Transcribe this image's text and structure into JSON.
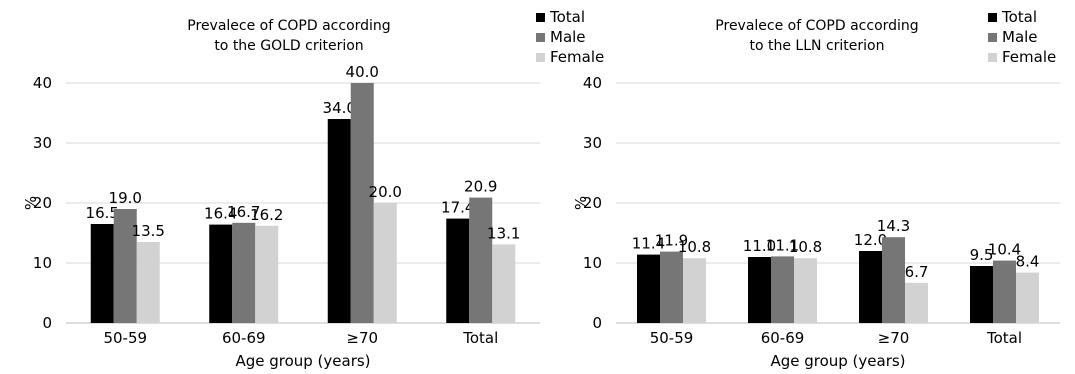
{
  "chart_data": [
    {
      "type": "bar",
      "title_lines": [
        "Prevalece of COPD according",
        "to the GOLD criterion"
      ],
      "xlabel": "Age group (years)",
      "ylabel": "%",
      "ylim": [
        0,
        40
      ],
      "yticks": [
        "0",
        "10",
        "20",
        "30",
        "40"
      ],
      "grid": true,
      "legend_position": "top-right",
      "categories": [
        "50-59",
        "60-69",
        "≥70",
        "Total"
      ],
      "series": [
        {
          "name": "Total",
          "color": "#000000",
          "values": [
            16.5,
            16.4,
            34.0,
            17.4
          ],
          "labels": [
            "16.5",
            "16.4",
            "34.0",
            "17.4"
          ]
        },
        {
          "name": "Male",
          "color": "#767676",
          "values": [
            19.0,
            16.7,
            40.0,
            20.9
          ],
          "labels": [
            "19.0",
            "16.7",
            "40.0",
            "20.9"
          ]
        },
        {
          "name": "Female",
          "color": "#d2d2d2",
          "values": [
            13.5,
            16.2,
            20.0,
            13.1
          ],
          "labels": [
            "13.5",
            "16.2",
            "20.0",
            "13.1"
          ]
        }
      ]
    },
    {
      "type": "bar",
      "title_lines": [
        "Prevalece of COPD according",
        "to the LLN criterion"
      ],
      "xlabel": "Age group (years)",
      "ylabel": "%",
      "ylim": [
        0,
        40
      ],
      "yticks": [
        "0",
        "10",
        "20",
        "30",
        "40"
      ],
      "grid": true,
      "legend_position": "top-right",
      "categories": [
        "50-59",
        "60-69",
        "≥70",
        "Total"
      ],
      "series": [
        {
          "name": "Total",
          "color": "#000000",
          "values": [
            11.4,
            11.0,
            12.0,
            9.5
          ],
          "labels": [
            "11.4",
            "11.0",
            "12.0",
            "9.5"
          ]
        },
        {
          "name": "Male",
          "color": "#767676",
          "values": [
            11.9,
            11.1,
            14.3,
            10.4
          ],
          "labels": [
            "11.9",
            "11.1",
            "14.3",
            "10.4"
          ]
        },
        {
          "name": "Female",
          "color": "#d2d2d2",
          "values": [
            10.8,
            10.8,
            6.7,
            8.4
          ],
          "labels": [
            "10.8",
            "10.8",
            "6.7",
            "8.4"
          ]
        }
      ]
    }
  ]
}
